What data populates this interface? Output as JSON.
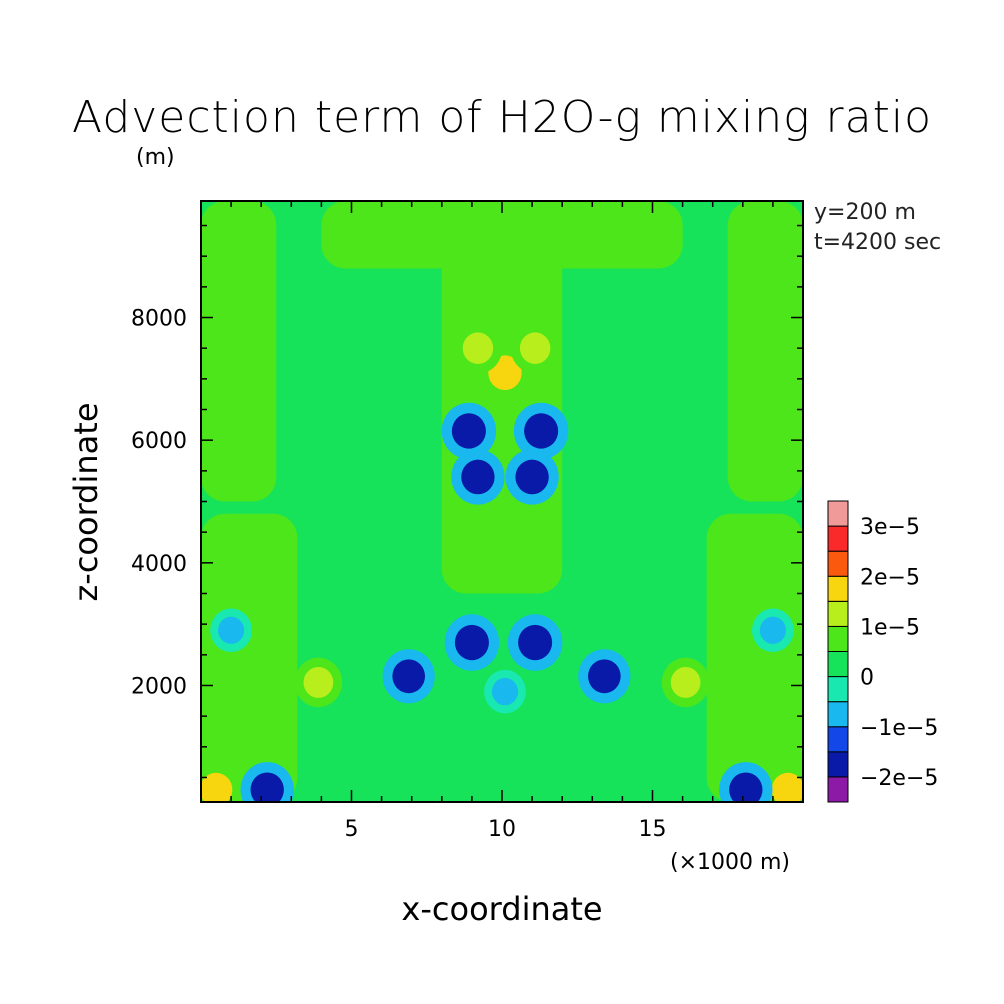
{
  "chart_data": {
    "type": "heatmap",
    "title": "Advection term of H2O-g mixing ratio",
    "y_unit_label": "(m)",
    "xlabel": "x-coordinate",
    "ylabel": "z-coordinate",
    "x_unit_label": "(×1000 m)",
    "annotations": [
      "y=200 m",
      "t=4200 sec"
    ],
    "xlim": [
      0,
      20
    ],
    "ylim": [
      100,
      9900
    ],
    "xticks": [
      5,
      10,
      15
    ],
    "xtick_labels": [
      "5",
      "10",
      "15"
    ],
    "yticks": [
      2000,
      4000,
      6000,
      8000
    ],
    "ytick_labels": [
      "2000",
      "4000",
      "6000",
      "8000"
    ],
    "colorbar": {
      "levels": [
        -2.5e-05,
        -2e-05,
        -1.5e-05,
        -1e-05,
        -5e-06,
        0,
        5e-06,
        1e-05,
        1.5e-05,
        2e-05,
        2.5e-05,
        3e-05,
        3.5e-05
      ],
      "colors": [
        "#8c1aa6",
        "#0a1aa8",
        "#1447e8",
        "#19b8ef",
        "#19e8b0",
        "#16e35a",
        "#4ce61a",
        "#b8ee1c",
        "#f8d60f",
        "#fb5a0e",
        "#fa2a2a",
        "#f09a9a"
      ],
      "tick_values": [
        -2e-05,
        -1e-05,
        0,
        1e-05,
        2e-05,
        3e-05
      ],
      "tick_labels": [
        "−2e−5",
        "−1e−5",
        "0",
        "1e−5",
        "2e−5",
        "3e−5"
      ]
    },
    "field_description": {
      "background_value": 2e-06,
      "symmetric_about_x": 10,
      "features": [
        {
          "kind": "region",
          "x": [
            0,
            3.2
          ],
          "z": [
            100,
            4800
          ],
          "value": 7e-06
        },
        {
          "kind": "region",
          "x": [
            16.8,
            20
          ],
          "z": [
            100,
            4800
          ],
          "value": 7e-06
        },
        {
          "kind": "region",
          "x": [
            0,
            2.5
          ],
          "z": [
            5000,
            9900
          ],
          "value": 7e-06
        },
        {
          "kind": "region",
          "x": [
            17.5,
            20
          ],
          "z": [
            5000,
            9900
          ],
          "value": 7e-06
        },
        {
          "kind": "region",
          "x": [
            8,
            12
          ],
          "z": [
            3500,
            9900
          ],
          "value": 7e-06
        },
        {
          "kind": "region",
          "x": [
            4,
            16
          ],
          "z": [
            8800,
            9900
          ],
          "value": 7e-06
        },
        {
          "kind": "spot",
          "x": 3.9,
          "z": 2050,
          "value": 1.2e-05
        },
        {
          "kind": "spot",
          "x": 16.1,
          "z": 2050,
          "value": 1.2e-05
        },
        {
          "kind": "spot",
          "x": 0.5,
          "z": 300,
          "value": 1.6e-05
        },
        {
          "kind": "spot",
          "x": 19.5,
          "z": 300,
          "value": 1.6e-05
        },
        {
          "kind": "spot",
          "x": 10.1,
          "z": 7100,
          "value": 1.7e-05
        },
        {
          "kind": "spot",
          "x": 9.2,
          "z": 7500,
          "value": 1.3e-05
        },
        {
          "kind": "spot",
          "x": 11.1,
          "z": 7500,
          "value": 1.3e-05
        },
        {
          "kind": "spot",
          "x": 8.9,
          "z": 6150,
          "value": -1.8e-05
        },
        {
          "kind": "spot",
          "x": 11.3,
          "z": 6150,
          "value": -1.8e-05
        },
        {
          "kind": "spot",
          "x": 9.2,
          "z": 5400,
          "value": -1.7e-05
        },
        {
          "kind": "spot",
          "x": 11.0,
          "z": 5400,
          "value": -1.7e-05
        },
        {
          "kind": "spot",
          "x": 9.0,
          "z": 2700,
          "value": -1.8e-05
        },
        {
          "kind": "spot",
          "x": 11.1,
          "z": 2700,
          "value": -1.8e-05
        },
        {
          "kind": "spot",
          "x": 6.9,
          "z": 2150,
          "value": -1.6e-05
        },
        {
          "kind": "spot",
          "x": 13.4,
          "z": 2150,
          "value": -1.6e-05
        },
        {
          "kind": "spot",
          "x": 10.1,
          "z": 1900,
          "value": -7e-06
        },
        {
          "kind": "spot",
          "x": 2.2,
          "z": 300,
          "value": -1.7e-05
        },
        {
          "kind": "spot",
          "x": 18.1,
          "z": 300,
          "value": -1.7e-05
        },
        {
          "kind": "spot",
          "x": 1.0,
          "z": 2900,
          "value": -7e-06
        },
        {
          "kind": "spot",
          "x": 19.0,
          "z": 2900,
          "value": -7e-06
        }
      ]
    }
  }
}
